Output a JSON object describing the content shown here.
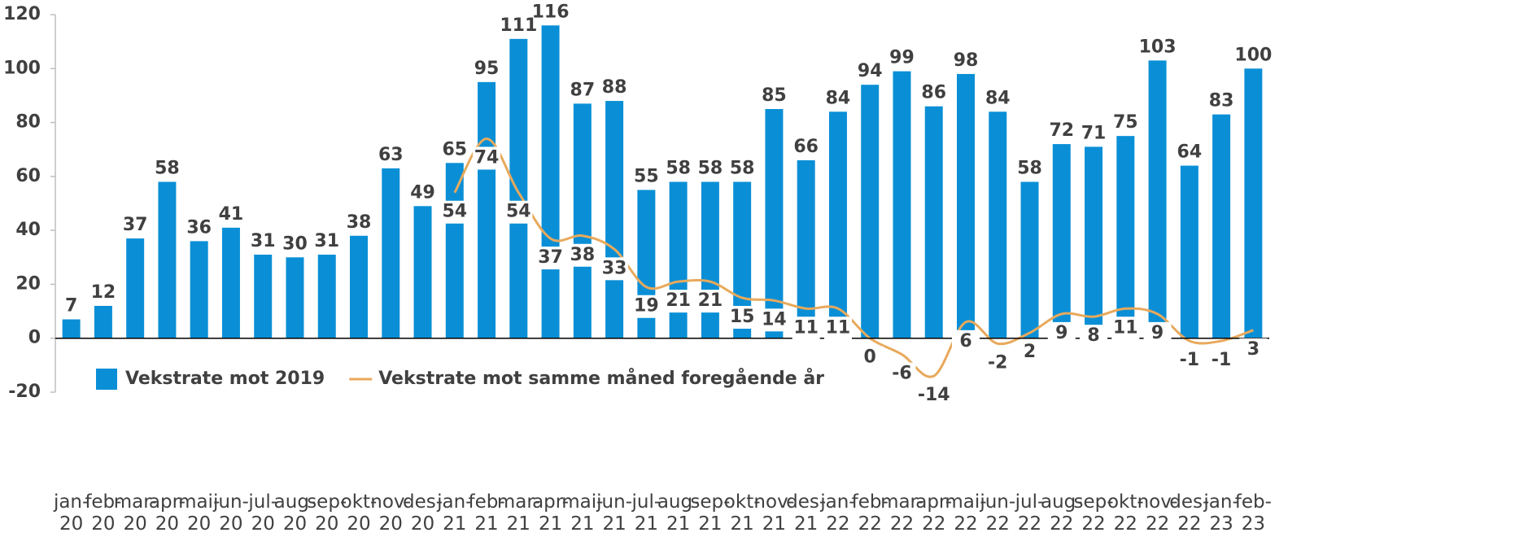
{
  "chart_data": {
    "type": "bar_line",
    "categories": [
      "jan-\n20",
      "feb-\n20",
      "mar-\n20",
      "apr-\n20",
      "mai-\n20",
      "jun-\n20",
      "jul-\n20",
      "aug-\n20",
      "sep-\n20",
      "okt-\n20",
      "nov-\n20",
      "des-\n20",
      "jan-\n21",
      "feb-\n21",
      "mar-\n21",
      "apr-\n21",
      "mai-\n21",
      "jun-\n21",
      "jul-\n21",
      "aug-\n21",
      "sep-\n21",
      "okt-\n21",
      "nov-\n21",
      "des-\n21",
      "jan-\n22",
      "feb-\n22",
      "mar-\n22",
      "apr-\n22",
      "mai-\n22",
      "jun-\n22",
      "jul-\n22",
      "aug-\n22",
      "sep-\n22",
      "okt-\n22",
      "nov-\n22",
      "des-\n22",
      "jan-\n23",
      "feb-\n23"
    ],
    "series": [
      {
        "name": "Vekstrate mot 2019",
        "type": "bar",
        "color": "#0a8fd6",
        "values": [
          7,
          12,
          37,
          58,
          36,
          41,
          31,
          30,
          31,
          38,
          63,
          49,
          65,
          95,
          111,
          116,
          87,
          88,
          55,
          58,
          58,
          58,
          85,
          66,
          84,
          94,
          99,
          86,
          98,
          84,
          58,
          72,
          71,
          75,
          103,
          64,
          83,
          100
        ]
      },
      {
        "name": "Vekstrate mot samme måned foregående år",
        "type": "line",
        "color": "#e8a95c",
        "values": [
          null,
          null,
          null,
          null,
          null,
          null,
          null,
          null,
          null,
          null,
          null,
          null,
          54,
          74,
          54,
          37,
          38,
          33,
          19,
          21,
          21,
          15,
          14,
          11,
          11,
          0,
          -6,
          -14,
          6,
          -2,
          2,
          9,
          8,
          11,
          9,
          -1,
          -1,
          3
        ]
      }
    ],
    "ylim": [
      -20,
      120
    ],
    "yticks": [
      -20,
      0,
      20,
      40,
      60,
      80,
      100,
      120
    ],
    "grid": false,
    "legend": "lower left"
  }
}
